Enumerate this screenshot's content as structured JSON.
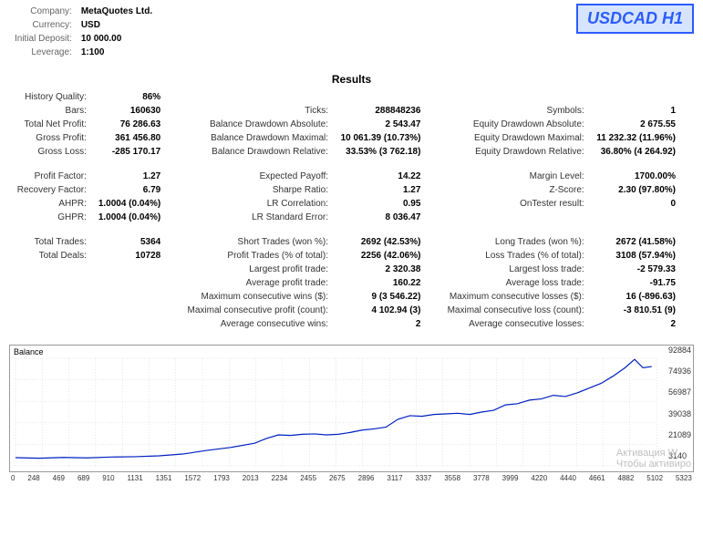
{
  "meta": {
    "company_label": "Company:",
    "company": "MetaQuotes Ltd.",
    "currency_label": "Currency:",
    "currency": "USD",
    "deposit_label": "Initial Deposit:",
    "deposit": "10 000.00",
    "leverage_label": "Leverage:",
    "leverage": "1:100"
  },
  "badge": "USDCAD H1",
  "results_title": "Results",
  "rows": [
    [
      {
        "l": "History Quality:",
        "v": "86%"
      },
      null,
      null
    ],
    [
      {
        "l": "Bars:",
        "v": "160630"
      },
      {
        "l": "Ticks:",
        "v": "288848236"
      },
      {
        "l": "Symbols:",
        "v": "1"
      }
    ],
    [
      {
        "l": "Total Net Profit:",
        "v": "76 286.63"
      },
      {
        "l": "Balance Drawdown Absolute:",
        "v": "2 543.47"
      },
      {
        "l": "Equity Drawdown Absolute:",
        "v": "2 675.55"
      }
    ],
    [
      {
        "l": "Gross Profit:",
        "v": "361 456.80"
      },
      {
        "l": "Balance Drawdown Maximal:",
        "v": "10 061.39 (10.73%)"
      },
      {
        "l": "Equity Drawdown Maximal:",
        "v": "11 232.32 (11.96%)"
      }
    ],
    [
      {
        "l": "Gross Loss:",
        "v": "-285 170.17"
      },
      {
        "l": "Balance Drawdown Relative:",
        "v": "33.53% (3 762.18)"
      },
      {
        "l": "Equity Drawdown Relative:",
        "v": "36.80% (4 264.92)"
      }
    ],
    "spacer",
    [
      {
        "l": "Profit Factor:",
        "v": "1.27"
      },
      {
        "l": "Expected Payoff:",
        "v": "14.22"
      },
      {
        "l": "Margin Level:",
        "v": "1700.00%"
      }
    ],
    [
      {
        "l": "Recovery Factor:",
        "v": "6.79"
      },
      {
        "l": "Sharpe Ratio:",
        "v": "1.27"
      },
      {
        "l": "Z-Score:",
        "v": "2.30 (97.80%)"
      }
    ],
    [
      {
        "l": "AHPR:",
        "v": "1.0004 (0.04%)"
      },
      {
        "l": "LR Correlation:",
        "v": "0.95"
      },
      {
        "l": "OnTester result:",
        "v": "0"
      }
    ],
    [
      {
        "l": "GHPR:",
        "v": "1.0004 (0.04%)"
      },
      {
        "l": "LR Standard Error:",
        "v": "8 036.47"
      },
      null
    ],
    "spacer",
    [
      {
        "l": "Total Trades:",
        "v": "5364"
      },
      {
        "l": "Short Trades (won %):",
        "v": "2692 (42.53%)"
      },
      {
        "l": "Long Trades (won %):",
        "v": "2672 (41.58%)"
      }
    ],
    [
      {
        "l": "Total Deals:",
        "v": "10728"
      },
      {
        "l": "Profit Trades (% of total):",
        "v": "2256 (42.06%)"
      },
      {
        "l": "Loss Trades (% of total):",
        "v": "3108 (57.94%)"
      }
    ],
    [
      null,
      {
        "l": "Largest profit trade:",
        "v": "2 320.38"
      },
      {
        "l": "Largest loss trade:",
        "v": "-2 579.33"
      }
    ],
    [
      null,
      {
        "l": "Average profit trade:",
        "v": "160.22"
      },
      {
        "l": "Average loss trade:",
        "v": "-91.75"
      }
    ],
    [
      null,
      {
        "l": "Maximum consecutive wins ($):",
        "v": "9 (3 546.22)"
      },
      {
        "l": "Maximum consecutive losses ($):",
        "v": "16 (-896.63)"
      }
    ],
    [
      null,
      {
        "l": "Maximal consecutive profit (count):",
        "v": "4 102.94 (3)"
      },
      {
        "l": "Maximal consecutive loss (count):",
        "v": "-3 810.51 (9)"
      }
    ],
    [
      null,
      {
        "l": "Average consecutive wins:",
        "v": "2"
      },
      {
        "l": "Average consecutive losses:",
        "v": "2"
      }
    ]
  ],
  "chart": {
    "title": "Balance",
    "type": "line",
    "line_color": "#0020c0",
    "grid_color": "#cccccc",
    "bg_color": "#ffffff",
    "xlim": [
      0,
      5364
    ],
    "ylim": [
      3140,
      92884
    ],
    "y_ticks": [
      "92884",
      "74936",
      "56987",
      "39038",
      "21089",
      "3140"
    ],
    "x_ticks": [
      "0",
      "248",
      "469",
      "689",
      "910",
      "1131",
      "1351",
      "1572",
      "1793",
      "2013",
      "2234",
      "2455",
      "2675",
      "2896",
      "3117",
      "3337",
      "3558",
      "3778",
      "3999",
      "4220",
      "4440",
      "4661",
      "4882",
      "5102",
      "5323"
    ],
    "points": [
      [
        0,
        10000
      ],
      [
        200,
        9500
      ],
      [
        400,
        10200
      ],
      [
        600,
        9800
      ],
      [
        800,
        10500
      ],
      [
        1000,
        10800
      ],
      [
        1200,
        11500
      ],
      [
        1400,
        13000
      ],
      [
        1600,
        16000
      ],
      [
        1800,
        18500
      ],
      [
        2000,
        22000
      ],
      [
        2100,
        26000
      ],
      [
        2200,
        29000
      ],
      [
        2300,
        28500
      ],
      [
        2400,
        29500
      ],
      [
        2500,
        29800
      ],
      [
        2600,
        29000
      ],
      [
        2700,
        29500
      ],
      [
        2800,
        31000
      ],
      [
        2900,
        33000
      ],
      [
        3000,
        34000
      ],
      [
        3100,
        35500
      ],
      [
        3200,
        42000
      ],
      [
        3300,
        45000
      ],
      [
        3400,
        44500
      ],
      [
        3500,
        46000
      ],
      [
        3600,
        46500
      ],
      [
        3700,
        47000
      ],
      [
        3800,
        46000
      ],
      [
        3900,
        48000
      ],
      [
        4000,
        49500
      ],
      [
        4100,
        54000
      ],
      [
        4200,
        55000
      ],
      [
        4300,
        58000
      ],
      [
        4400,
        59000
      ],
      [
        4500,
        62000
      ],
      [
        4600,
        61000
      ],
      [
        4700,
        64000
      ],
      [
        4800,
        68000
      ],
      [
        4900,
        72000
      ],
      [
        5000,
        78000
      ],
      [
        5100,
        85000
      ],
      [
        5180,
        92000
      ],
      [
        5250,
        85000
      ],
      [
        5323,
        86000
      ]
    ]
  },
  "watermark": {
    "line1": "Активация W",
    "line2": "Чтобы активиро"
  }
}
